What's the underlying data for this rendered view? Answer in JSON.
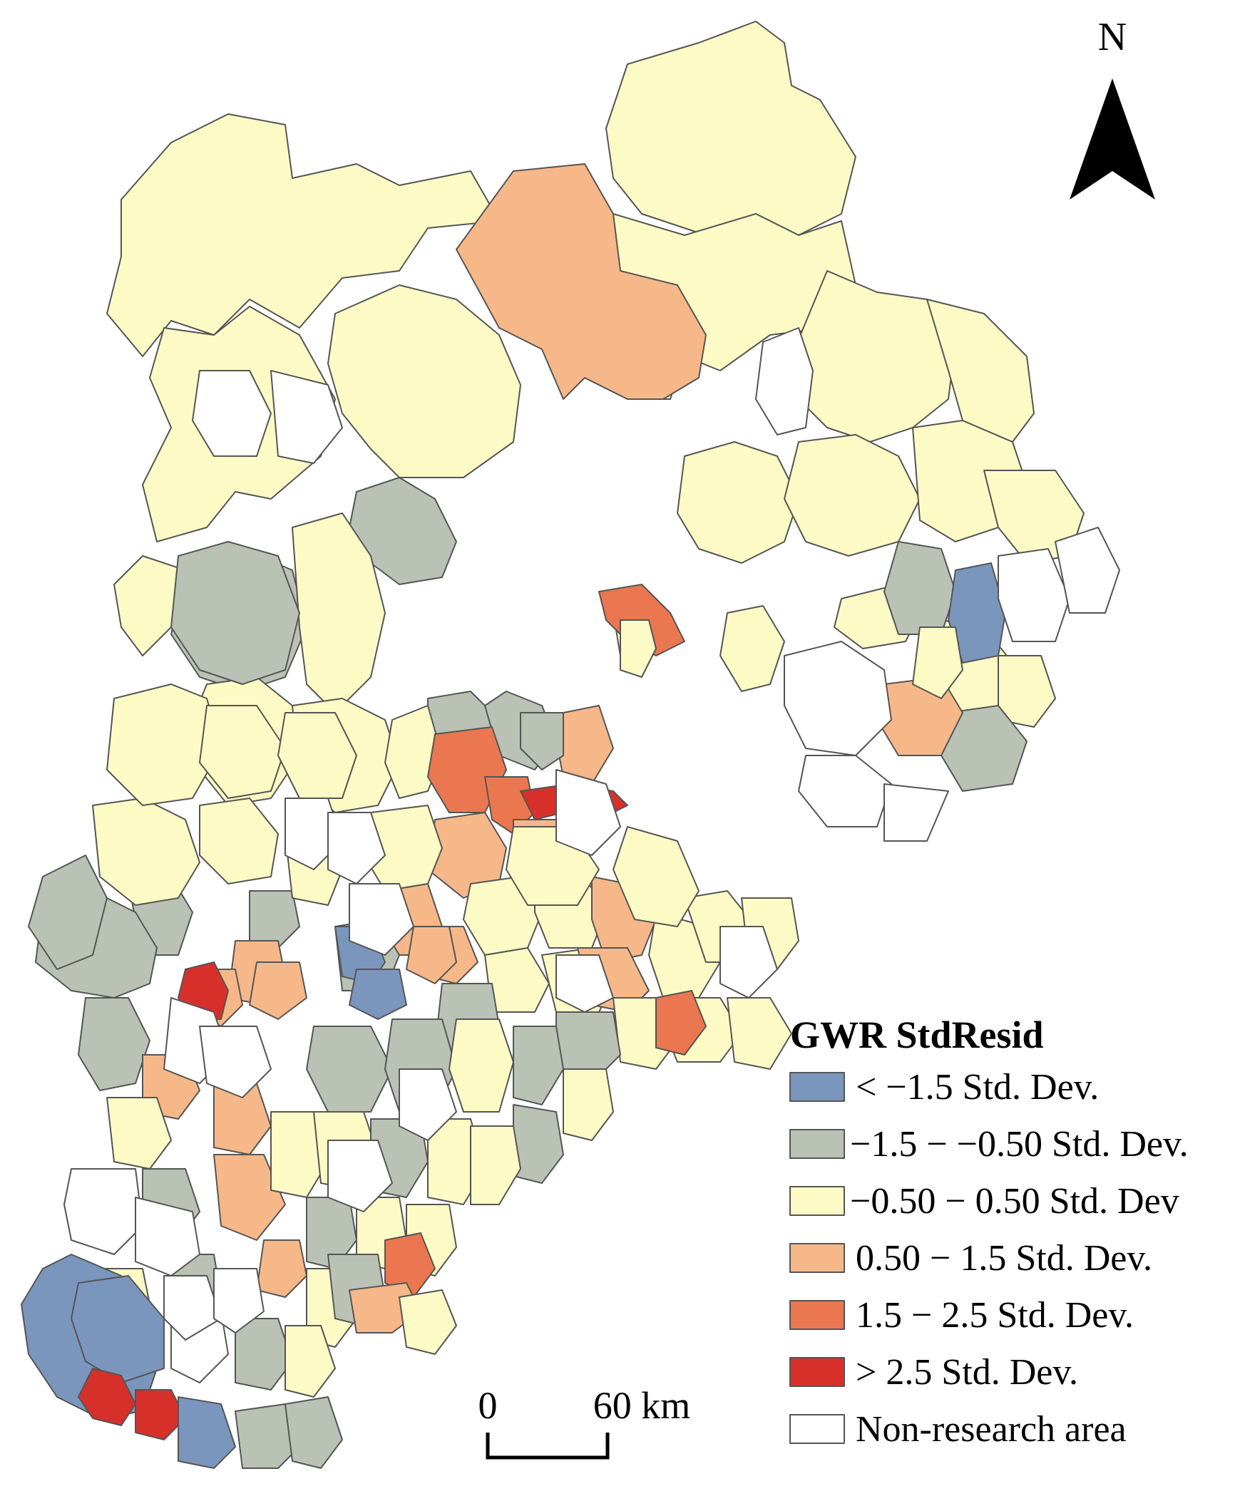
{
  "map": {
    "north_label": "N",
    "scale_bar": {
      "start_label": "0",
      "end_label": "60 km"
    },
    "legend": {
      "title": "GWR StdResid",
      "items": [
        {
          "label": "< −1.5 Std. Dev.",
          "color": "#7b96bd"
        },
        {
          "label": "−1.5 − −0.50 Std. Dev.",
          "color": "#b9c2b4"
        },
        {
          "label": "−0.50 − 0.50 Std. Dev",
          "color": "#fdfbc5"
        },
        {
          "label": "0.50 − 1.5 Std. Dev.",
          "color": "#f6b889"
        },
        {
          "label": "1.5 − 2.5 Std. Dev.",
          "color": "#ea7750"
        },
        {
          "label": "> 2.5 Std. Dev.",
          "color": "#d7302b"
        },
        {
          "label": "Non-research area",
          "color": "#ffffff"
        }
      ]
    },
    "colors": {
      "c1": "#7b96bd",
      "c2": "#b9c2b4",
      "c3": "#fdfbc5",
      "c4": "#f6b889",
      "c5": "#ea7750",
      "c6": "#d7302b",
      "c7": "#ffffff",
      "border": "#555555"
    }
  }
}
